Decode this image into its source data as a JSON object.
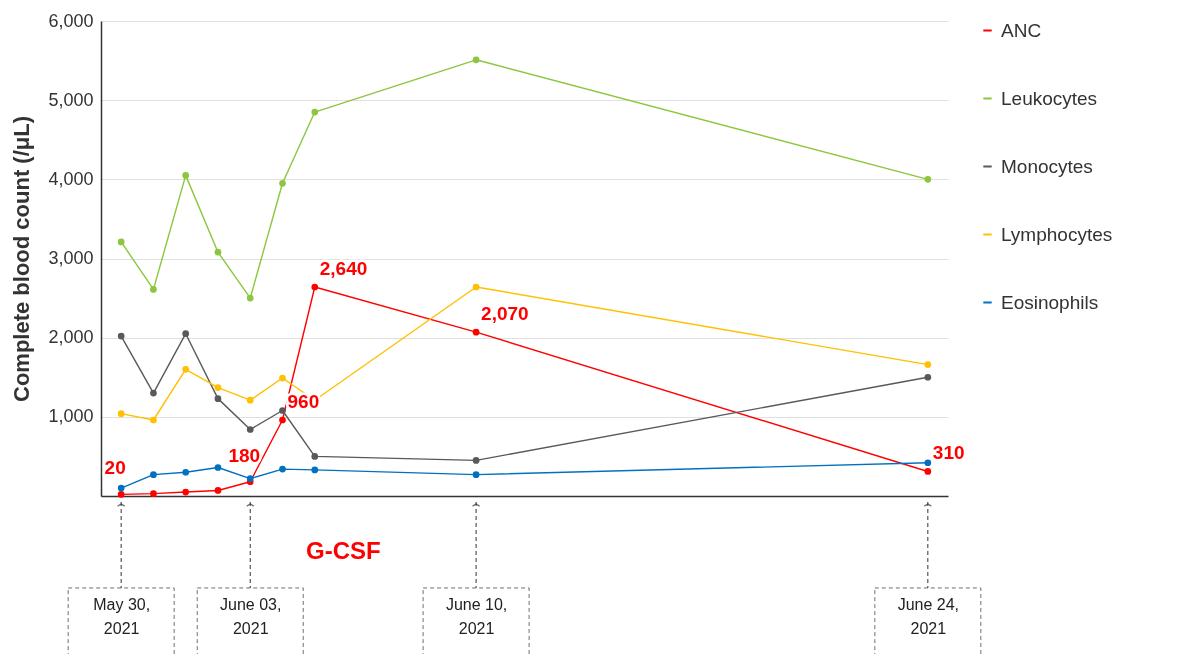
{
  "chart_data": {
    "type": "line",
    "ylabel": "Complete blood count (/μL)",
    "x": [
      "2021-05-30",
      "2021-05-31",
      "2021-06-01",
      "2021-06-02",
      "2021-06-03",
      "2021-06-04",
      "2021-06-05",
      "2021-06-10",
      "2021-06-24"
    ],
    "series": [
      {
        "name": "ANC",
        "color": "#ff0000",
        "values": [
          20,
          30,
          50,
          70,
          180,
          960,
          2640,
          2070,
          310
        ],
        "value_labels": [
          "20",
          null,
          null,
          null,
          "180",
          "960",
          "2,640",
          "2,070",
          "310"
        ]
      },
      {
        "name": "Leukocytes",
        "color": "#8cc63f",
        "values": [
          3210,
          2610,
          4050,
          3080,
          2500,
          3950,
          4850,
          5510,
          4000
        ]
      },
      {
        "name": "Monocytes",
        "color": "#595959",
        "values": [
          2020,
          1300,
          2050,
          1230,
          840,
          1080,
          500,
          450,
          1500
        ]
      },
      {
        "name": "Lymphocytes",
        "color": "#ffc000",
        "values": [
          1040,
          960,
          1600,
          1370,
          1210,
          1490,
          1210,
          2640,
          1660
        ]
      },
      {
        "name": "Eosinophils",
        "color": "#0070c0",
        "values": [
          100,
          270,
          300,
          360,
          220,
          340,
          330,
          270,
          420
        ]
      }
    ],
    "xlim": [
      "2021-05-29T09:00",
      "2021-06-24T15:00"
    ],
    "xticks": [
      {
        "value": "2021-05-30",
        "label": "May 30, 2021"
      },
      {
        "value": "2021-06-03",
        "label": "June 03, 2021"
      },
      {
        "value": "2021-06-10",
        "label": "June 10, 2021"
      },
      {
        "value": "2021-06-24",
        "label": "June 24, 2021"
      }
    ],
    "ylim": [
      0,
      6000
    ],
    "yticks": [
      {
        "value": 1000,
        "label": "1,000"
      },
      {
        "value": 2000,
        "label": "2,000"
      },
      {
        "value": 3000,
        "label": "3,000"
      },
      {
        "value": 4000,
        "label": "4,000"
      },
      {
        "value": 5000,
        "label": "5,000"
      },
      {
        "value": 6000,
        "label": "6,000"
      }
    ],
    "grid": "y",
    "legend": "top right",
    "marker": "circle",
    "line_style": "solid",
    "annotations": [
      "G-CSF"
    ]
  }
}
